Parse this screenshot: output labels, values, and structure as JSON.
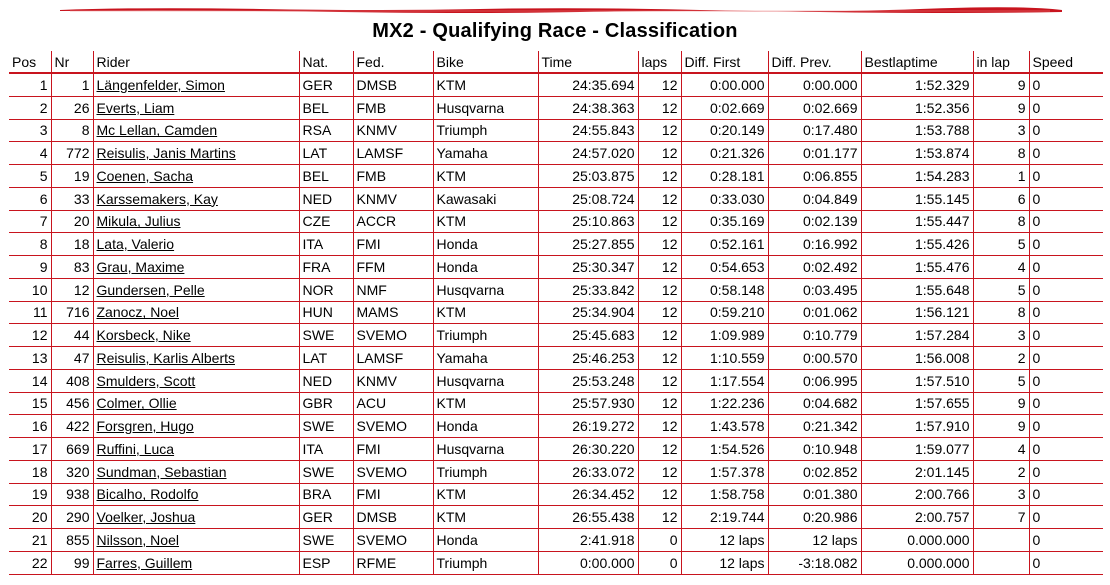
{
  "page": {
    "title": "MX2 - Qualifying Race - Classification"
  },
  "colors": {
    "accent": "#c8141e"
  },
  "table": {
    "columns": [
      "Pos",
      "Nr",
      "Rider",
      "Nat.",
      "Fed.",
      "Bike",
      "Time",
      "laps",
      "Diff. First",
      "Diff. Prev.",
      "Bestlaptime",
      "in lap",
      "Speed"
    ],
    "rows": [
      {
        "pos": "1",
        "nr": "1",
        "rider": "Längenfelder, Simon",
        "nat": "GER",
        "fed": "DMSB",
        "bike": "KTM",
        "time": "24:35.694",
        "laps": "12",
        "diff_first": "0:00.000",
        "diff_prev": "0:00.000",
        "best": "1:52.329",
        "in_lap": "9",
        "speed": "0"
      },
      {
        "pos": "2",
        "nr": "26",
        "rider": "Everts, Liam",
        "nat": "BEL",
        "fed": "FMB",
        "bike": "Husqvarna",
        "time": "24:38.363",
        "laps": "12",
        "diff_first": "0:02.669",
        "diff_prev": "0:02.669",
        "best": "1:52.356",
        "in_lap": "9",
        "speed": "0"
      },
      {
        "pos": "3",
        "nr": "8",
        "rider": "Mc Lellan, Camden",
        "nat": "RSA",
        "fed": "KNMV",
        "bike": "Triumph",
        "time": "24:55.843",
        "laps": "12",
        "diff_first": "0:20.149",
        "diff_prev": "0:17.480",
        "best": "1:53.788",
        "in_lap": "3",
        "speed": "0"
      },
      {
        "pos": "4",
        "nr": "772",
        "rider": "Reisulis, Janis Martins",
        "nat": "LAT",
        "fed": "LAMSF",
        "bike": "Yamaha",
        "time": "24:57.020",
        "laps": "12",
        "diff_first": "0:21.326",
        "diff_prev": "0:01.177",
        "best": "1:53.874",
        "in_lap": "8",
        "speed": "0"
      },
      {
        "pos": "5",
        "nr": "19",
        "rider": "Coenen, Sacha",
        "nat": "BEL",
        "fed": "FMB",
        "bike": "KTM",
        "time": "25:03.875",
        "laps": "12",
        "diff_first": "0:28.181",
        "diff_prev": "0:06.855",
        "best": "1:54.283",
        "in_lap": "1",
        "speed": "0"
      },
      {
        "pos": "6",
        "nr": "33",
        "rider": "Karssemakers, Kay",
        "nat": "NED",
        "fed": "KNMV",
        "bike": "Kawasaki",
        "time": "25:08.724",
        "laps": "12",
        "diff_first": "0:33.030",
        "diff_prev": "0:04.849",
        "best": "1:55.145",
        "in_lap": "6",
        "speed": "0"
      },
      {
        "pos": "7",
        "nr": "20",
        "rider": "Mikula, Julius",
        "nat": "CZE",
        "fed": "ACCR",
        "bike": "KTM",
        "time": "25:10.863",
        "laps": "12",
        "diff_first": "0:35.169",
        "diff_prev": "0:02.139",
        "best": "1:55.447",
        "in_lap": "8",
        "speed": "0"
      },
      {
        "pos": "8",
        "nr": "18",
        "rider": "Lata, Valerio",
        "nat": "ITA",
        "fed": "FMI",
        "bike": "Honda",
        "time": "25:27.855",
        "laps": "12",
        "diff_first": "0:52.161",
        "diff_prev": "0:16.992",
        "best": "1:55.426",
        "in_lap": "5",
        "speed": "0"
      },
      {
        "pos": "9",
        "nr": "83",
        "rider": "Grau, Maxime",
        "nat": "FRA",
        "fed": "FFM",
        "bike": "Honda",
        "time": "25:30.347",
        "laps": "12",
        "diff_first": "0:54.653",
        "diff_prev": "0:02.492",
        "best": "1:55.476",
        "in_lap": "4",
        "speed": "0"
      },
      {
        "pos": "10",
        "nr": "12",
        "rider": "Gundersen, Pelle",
        "nat": "NOR",
        "fed": "NMF",
        "bike": "Husqvarna",
        "time": "25:33.842",
        "laps": "12",
        "diff_first": "0:58.148",
        "diff_prev": "0:03.495",
        "best": "1:55.648",
        "in_lap": "5",
        "speed": "0"
      },
      {
        "pos": "11",
        "nr": "716",
        "rider": "Zanocz, Noel",
        "nat": "HUN",
        "fed": "MAMS",
        "bike": "KTM",
        "time": "25:34.904",
        "laps": "12",
        "diff_first": "0:59.210",
        "diff_prev": "0:01.062",
        "best": "1:56.121",
        "in_lap": "8",
        "speed": "0"
      },
      {
        "pos": "12",
        "nr": "44",
        "rider": "Korsbeck, Nike",
        "nat": "SWE",
        "fed": "SVEMO",
        "bike": "Triumph",
        "time": "25:45.683",
        "laps": "12",
        "diff_first": "1:09.989",
        "diff_prev": "0:10.779",
        "best": "1:57.284",
        "in_lap": "3",
        "speed": "0"
      },
      {
        "pos": "13",
        "nr": "47",
        "rider": "Reisulis, Karlis Alberts",
        "nat": "LAT",
        "fed": "LAMSF",
        "bike": "Yamaha",
        "time": "25:46.253",
        "laps": "12",
        "diff_first": "1:10.559",
        "diff_prev": "0:00.570",
        "best": "1:56.008",
        "in_lap": "2",
        "speed": "0"
      },
      {
        "pos": "14",
        "nr": "408",
        "rider": "Smulders, Scott",
        "nat": "NED",
        "fed": "KNMV",
        "bike": "Husqvarna",
        "time": "25:53.248",
        "laps": "12",
        "diff_first": "1:17.554",
        "diff_prev": "0:06.995",
        "best": "1:57.510",
        "in_lap": "5",
        "speed": "0"
      },
      {
        "pos": "15",
        "nr": "456",
        "rider": "Colmer, Ollie",
        "nat": "GBR",
        "fed": "ACU",
        "bike": "KTM",
        "time": "25:57.930",
        "laps": "12",
        "diff_first": "1:22.236",
        "diff_prev": "0:04.682",
        "best": "1:57.655",
        "in_lap": "9",
        "speed": "0"
      },
      {
        "pos": "16",
        "nr": "422",
        "rider": "Forsgren, Hugo",
        "nat": "SWE",
        "fed": "SVEMO",
        "bike": "Honda",
        "time": "26:19.272",
        "laps": "12",
        "diff_first": "1:43.578",
        "diff_prev": "0:21.342",
        "best": "1:57.910",
        "in_lap": "9",
        "speed": "0"
      },
      {
        "pos": "17",
        "nr": "669",
        "rider": "Ruffini, Luca",
        "nat": "ITA",
        "fed": "FMI",
        "bike": "Husqvarna",
        "time": "26:30.220",
        "laps": "12",
        "diff_first": "1:54.526",
        "diff_prev": "0:10.948",
        "best": "1:59.077",
        "in_lap": "4",
        "speed": "0"
      },
      {
        "pos": "18",
        "nr": "320",
        "rider": "Sundman, Sebastian",
        "nat": "SWE",
        "fed": "SVEMO",
        "bike": "Triumph",
        "time": "26:33.072",
        "laps": "12",
        "diff_first": "1:57.378",
        "diff_prev": "0:02.852",
        "best": "2:01.145",
        "in_lap": "2",
        "speed": "0"
      },
      {
        "pos": "19",
        "nr": "938",
        "rider": "Bicalho, Rodolfo",
        "nat": "BRA",
        "fed": "FMI",
        "bike": "KTM",
        "time": "26:34.452",
        "laps": "12",
        "diff_first": "1:58.758",
        "diff_prev": "0:01.380",
        "best": "2:00.766",
        "in_lap": "3",
        "speed": "0"
      },
      {
        "pos": "20",
        "nr": "290",
        "rider": "Voelker, Joshua",
        "nat": "GER",
        "fed": "DMSB",
        "bike": "KTM",
        "time": "26:55.438",
        "laps": "12",
        "diff_first": "2:19.744",
        "diff_prev": "0:20.986",
        "best": "2:00.757",
        "in_lap": "7",
        "speed": "0"
      },
      {
        "pos": "21",
        "nr": "855",
        "rider": "Nilsson, Noel",
        "nat": "SWE",
        "fed": "SVEMO",
        "bike": "Honda",
        "time": "2:41.918",
        "laps": "0",
        "diff_first": "12 laps",
        "diff_prev": "12 laps",
        "best": "0.000.000",
        "in_lap": "",
        "speed": "0"
      },
      {
        "pos": "22",
        "nr": "99",
        "rider": "Farres, Guillem",
        "nat": "ESP",
        "fed": "RFME",
        "bike": "Triumph",
        "time": "0:00.000",
        "laps": "0",
        "diff_first": "12 laps",
        "diff_prev": "-3:18.082",
        "best": "0.000.000",
        "in_lap": "",
        "speed": "0"
      }
    ]
  }
}
